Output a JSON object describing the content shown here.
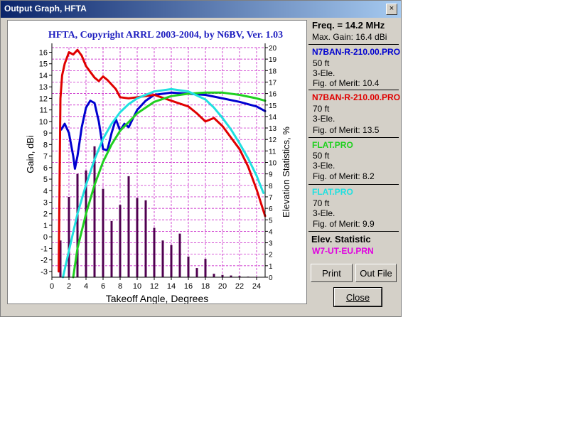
{
  "window": {
    "title": "Output Graph, HFTA",
    "close_glyph": "×"
  },
  "graph": {
    "title": "HFTA, Copyright ARRL 2003-2004, by N6BV, Ver. 1.03",
    "left_axis_label": "Gain, dBi",
    "right_axis_label": "Elevation Statistics, %",
    "x_axis_label": "Takeoff Angle, Degrees"
  },
  "chart_data": {
    "type": "line",
    "title": "HFTA, Copyright ARRL 2003-2004, by N6BV, Ver. 1.03",
    "xlabel": "Takeoff Angle, Degrees",
    "ylabel": "Gain, dBi",
    "y2label": "Elevation Statistics, %",
    "xlim": [
      0,
      25
    ],
    "ylim": [
      -3.5,
      16.4
    ],
    "y2lim": [
      0,
      20
    ],
    "x_ticks": [
      0,
      2,
      4,
      6,
      8,
      10,
      12,
      14,
      16,
      18,
      20,
      22,
      24
    ],
    "y_ticks": [
      -3,
      -2,
      -1,
      0,
      1,
      2,
      3,
      4,
      5,
      6,
      7,
      8,
      9,
      10,
      11,
      12,
      13,
      14,
      15,
      16
    ],
    "y2_ticks": [
      0,
      1,
      2,
      3,
      4,
      5,
      6,
      7,
      8,
      9,
      10,
      11,
      12,
      13,
      14,
      15,
      16,
      17,
      18,
      19,
      20
    ],
    "grid": true,
    "series": [
      {
        "name": "N7BAN-R-210.00.PRO",
        "color": "#0000d0",
        "x": [
          1.1,
          1.5,
          2.0,
          2.5,
          2.7,
          3.0,
          3.5,
          4.0,
          4.5,
          5.0,
          5.5,
          6.0,
          6.5,
          7.0,
          7.5,
          8.0,
          8.5,
          9.0,
          10.0,
          11.0,
          12.0,
          14.0,
          16.0,
          18.0,
          20.0,
          22.0,
          24.0,
          25.0
        ],
        "y": [
          9.3,
          9.8,
          9.0,
          7.0,
          5.9,
          7.0,
          9.5,
          11.2,
          11.8,
          11.6,
          10.0,
          7.6,
          7.5,
          9.0,
          10.2,
          9.2,
          9.8,
          9.5,
          11.0,
          11.8,
          12.3,
          12.5,
          12.4,
          12.3,
          12.0,
          11.7,
          11.3,
          10.9
        ]
      },
      {
        "name": "N7BAN-R-210.00.PRO",
        "color": "#e00000",
        "x": [
          0.8,
          1.0,
          1.2,
          1.5,
          2.0,
          2.5,
          3.0,
          3.5,
          4.0,
          4.5,
          5.0,
          5.5,
          6.0,
          6.5,
          7.0,
          7.5,
          8.0,
          9.0,
          10.0,
          12.0,
          14.0,
          16.0,
          17.0,
          18.0,
          19.0,
          20.0,
          22.0,
          23.0,
          24.0,
          25.0
        ],
        "y": [
          -3.0,
          12.0,
          14.0,
          15.0,
          16.0,
          15.8,
          16.2,
          15.7,
          14.8,
          14.3,
          13.8,
          13.5,
          13.9,
          13.6,
          13.2,
          12.8,
          12.1,
          12.0,
          12.1,
          12.3,
          11.8,
          11.3,
          10.7,
          10.0,
          10.3,
          9.6,
          7.6,
          6.1,
          4.1,
          1.8
        ]
      },
      {
        "name": "FLAT.PRO",
        "color": "#20d020",
        "x": [
          2.5,
          3.0,
          4.0,
          5.0,
          6.0,
          7.0,
          8.0,
          10.0,
          12.0,
          14.0,
          16.0,
          18.0,
          20.0,
          22.0,
          24.0,
          25.0
        ],
        "y": [
          -3.5,
          -1.0,
          2.0,
          4.5,
          6.5,
          8.0,
          9.2,
          10.7,
          11.7,
          12.2,
          12.4,
          12.5,
          12.5,
          12.3,
          12.0,
          11.8
        ]
      },
      {
        "name": "FLAT.PRO",
        "color": "#20e0e0",
        "x": [
          1.3,
          2.0,
          3.0,
          4.0,
          5.0,
          6.0,
          7.0,
          8.0,
          9.0,
          10.0,
          12.0,
          14.0,
          16.0,
          18.0,
          19.0,
          20.0,
          21.0,
          22.0,
          23.0,
          24.0,
          24.8
        ],
        "y": [
          -3.5,
          -1.2,
          2.0,
          4.5,
          6.7,
          8.5,
          9.8,
          10.8,
          11.5,
          12.0,
          12.6,
          12.8,
          12.6,
          11.9,
          11.2,
          10.3,
          9.3,
          8.1,
          6.8,
          5.3,
          3.8
        ]
      }
    ],
    "bars": {
      "name": "W7-UT-EU.PRN",
      "color": "#500050",
      "x": [
        1,
        2,
        3,
        4,
        5,
        6,
        7,
        8,
        9,
        10,
        11,
        12,
        13,
        14,
        15,
        16,
        17,
        18,
        19,
        20,
        21,
        22,
        23
      ],
      "values": [
        3.2,
        7.0,
        9.0,
        9.3,
        11.4,
        7.7,
        4.9,
        6.3,
        8.8,
        6.9,
        6.7,
        4.3,
        3.2,
        2.8,
        3.8,
        1.8,
        0.8,
        1.6,
        0.3,
        0.2,
        0.15,
        0.1,
        0.05
      ]
    }
  },
  "info": {
    "freq": "Freq. = 14.2 MHz",
    "max_gain": "Max. Gain: 16.4 dBi",
    "entries": [
      {
        "name": "N7BAN-R-210.00.PRO",
        "height": "50 ft",
        "elements": "3-Ele.",
        "merit": "Fig. of Merit:  10.4",
        "color": "#0000d0"
      },
      {
        "name": "N7BAN-R-210.00.PRO",
        "height": "70 ft",
        "elements": "3-Ele.",
        "merit": "Fig. of Merit:  13.5",
        "color": "#e00000"
      },
      {
        "name": "FLAT.PRO",
        "height": "50 ft",
        "elements": "3-Ele.",
        "merit": "Fig. of Merit:  8.2",
        "color": "#20d020"
      },
      {
        "name": "FLAT.PRO",
        "height": "70 ft",
        "elements": "3-Ele.",
        "merit": "Fig. of Merit:  9.9",
        "color": "#20e0e0"
      }
    ],
    "elev_statistic": "Elev. Statistic",
    "elev_file": "W7-UT-EU.PRN",
    "elev_file_color": "#e000e0"
  },
  "buttons": {
    "print": "Print",
    "out_file": "Out File",
    "close": "Close"
  }
}
